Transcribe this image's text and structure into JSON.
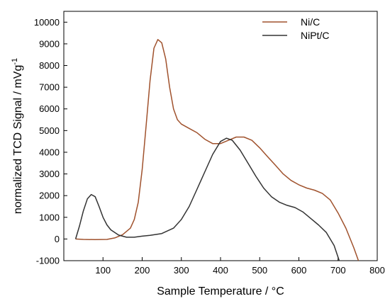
{
  "chart_data": {
    "type": "line",
    "xlabel": "Sample Temperature  /  °C",
    "ylabel_main": "normalized TCD Signal  /  mVg",
    "ylabel_sup": "-1",
    "xlim": [
      0,
      800
    ],
    "ylim": [
      -1000,
      10500
    ],
    "x_ticks": [
      100,
      200,
      300,
      400,
      500,
      600,
      700,
      800
    ],
    "y_ticks": [
      -1000,
      0,
      1000,
      2000,
      3000,
      4000,
      5000,
      6000,
      7000,
      8000,
      9000,
      10000
    ],
    "grid": false,
    "legend_position": "top-right",
    "series": [
      {
        "name": "Ni/C",
        "color": "#a0522d",
        "points": [
          [
            30,
            0
          ],
          [
            50,
            -20
          ],
          [
            80,
            -30
          ],
          [
            110,
            -20
          ],
          [
            130,
            50
          ],
          [
            150,
            200
          ],
          [
            170,
            500
          ],
          [
            180,
            900
          ],
          [
            190,
            1700
          ],
          [
            200,
            3200
          ],
          [
            210,
            5200
          ],
          [
            220,
            7300
          ],
          [
            230,
            8800
          ],
          [
            240,
            9200
          ],
          [
            250,
            9050
          ],
          [
            260,
            8300
          ],
          [
            270,
            7000
          ],
          [
            280,
            6000
          ],
          [
            290,
            5500
          ],
          [
            300,
            5300
          ],
          [
            320,
            5100
          ],
          [
            340,
            4900
          ],
          [
            360,
            4600
          ],
          [
            380,
            4400
          ],
          [
            400,
            4400
          ],
          [
            420,
            4550
          ],
          [
            440,
            4700
          ],
          [
            460,
            4700
          ],
          [
            480,
            4550
          ],
          [
            500,
            4200
          ],
          [
            520,
            3800
          ],
          [
            540,
            3400
          ],
          [
            560,
            3000
          ],
          [
            580,
            2700
          ],
          [
            600,
            2500
          ],
          [
            620,
            2350
          ],
          [
            640,
            2250
          ],
          [
            660,
            2100
          ],
          [
            680,
            1800
          ],
          [
            700,
            1200
          ],
          [
            720,
            500
          ],
          [
            740,
            -400
          ],
          [
            752,
            -1000
          ]
        ]
      },
      {
        "name": "NiPt/C",
        "color": "#333333",
        "points": [
          [
            30,
            0
          ],
          [
            40,
            600
          ],
          [
            50,
            1300
          ],
          [
            60,
            1850
          ],
          [
            70,
            2050
          ],
          [
            80,
            1950
          ],
          [
            90,
            1500
          ],
          [
            100,
            1000
          ],
          [
            110,
            650
          ],
          [
            120,
            420
          ],
          [
            140,
            180
          ],
          [
            160,
            80
          ],
          [
            180,
            80
          ],
          [
            200,
            130
          ],
          [
            220,
            170
          ],
          [
            250,
            250
          ],
          [
            280,
            500
          ],
          [
            300,
            900
          ],
          [
            320,
            1500
          ],
          [
            340,
            2300
          ],
          [
            360,
            3100
          ],
          [
            380,
            3900
          ],
          [
            400,
            4500
          ],
          [
            415,
            4650
          ],
          [
            430,
            4550
          ],
          [
            450,
            4100
          ],
          [
            470,
            3500
          ],
          [
            490,
            2900
          ],
          [
            510,
            2350
          ],
          [
            530,
            1950
          ],
          [
            550,
            1700
          ],
          [
            570,
            1550
          ],
          [
            590,
            1450
          ],
          [
            610,
            1250
          ],
          [
            630,
            950
          ],
          [
            650,
            650
          ],
          [
            670,
            300
          ],
          [
            690,
            -300
          ],
          [
            703,
            -1000
          ]
        ]
      }
    ]
  }
}
